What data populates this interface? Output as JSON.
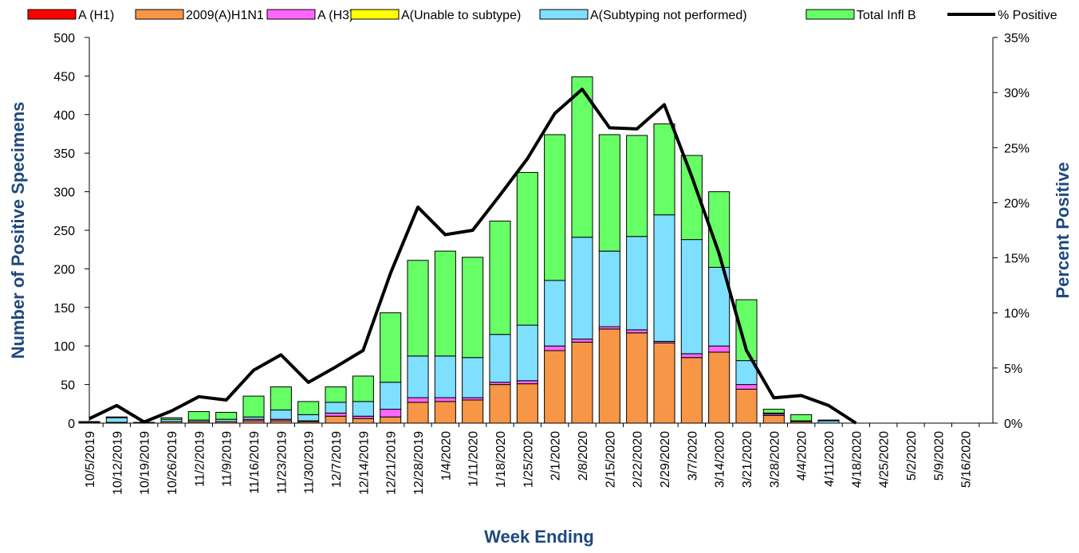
{
  "chart_data": {
    "type": "bar",
    "xlabel": "Week Ending",
    "ylabel": "Number of  Positive Specimens",
    "y2label": "Percent Positive",
    "categories": [
      "10/5/2019",
      "10/12/2019",
      "10/19/2019",
      "10/26/2019",
      "11/2/2019",
      "11/9/2019",
      "11/16/2019",
      "11/23/2019",
      "11/30/2019",
      "12/7/2019",
      "12/14/2019",
      "12/21/2019",
      "12/28/2019",
      "1/4/2020",
      "1/11/2020",
      "1/18/2020",
      "1/25/2020",
      "2/1/2020",
      "2/8/2020",
      "2/15/2020",
      "2/22/2020",
      "2/29/2020",
      "3/7/2020",
      "3/14/2020",
      "3/21/2020",
      "3/28/2020",
      "4/4/2020",
      "4/11/2020",
      "4/18/2020",
      "4/25/2020",
      "5/2/2020",
      "5/9/2020",
      "5/16/2020"
    ],
    "series": [
      {
        "name": "A (H1)",
        "color": "#ff0000",
        "values": [
          0,
          0,
          0,
          0,
          0,
          0,
          0,
          0,
          0,
          0,
          0,
          0,
          0,
          0,
          0,
          0,
          0,
          0,
          0,
          0,
          0,
          0,
          0,
          0,
          0,
          0,
          0,
          0,
          0,
          0,
          0,
          0,
          0
        ]
      },
      {
        "name": "2009(A)H1N1",
        "color": "#f79646",
        "values": [
          0,
          1,
          0,
          2,
          2,
          2,
          3,
          3,
          2,
          9,
          6,
          8,
          27,
          28,
          30,
          50,
          51,
          94,
          105,
          122,
          117,
          104,
          85,
          92,
          44,
          10,
          2,
          0,
          0,
          0,
          0,
          0,
          0
        ]
      },
      {
        "name": "A (H3)",
        "color": "#ff66ff",
        "values": [
          0,
          0,
          0,
          0,
          0,
          0,
          2,
          2,
          1,
          4,
          3,
          10,
          6,
          5,
          3,
          3,
          4,
          6,
          4,
          3,
          4,
          2,
          5,
          8,
          6,
          2,
          0,
          0,
          0,
          0,
          0,
          0,
          0
        ]
      },
      {
        "name": "A(Unable to subtype)",
        "color": "#ffff00",
        "values": [
          0,
          0,
          0,
          0,
          0,
          0,
          0,
          0,
          0,
          0,
          0,
          0,
          0,
          0,
          0,
          0,
          0,
          0,
          0,
          0,
          0,
          0,
          0,
          0,
          0,
          0,
          0,
          0,
          0,
          0,
          0,
          0,
          0
        ]
      },
      {
        "name": "A(Subtyping not performed)",
        "color": "#7fdfff",
        "values": [
          1,
          6,
          0,
          3,
          2,
          3,
          3,
          12,
          8,
          14,
          19,
          35,
          54,
          54,
          52,
          62,
          72,
          85,
          132,
          98,
          121,
          164,
          148,
          102,
          31,
          1,
          1,
          3,
          0,
          0,
          0,
          0,
          0
        ]
      },
      {
        "name": "Total Infl B",
        "color": "#66ff66",
        "values": [
          1,
          1,
          1,
          2,
          11,
          9,
          27,
          30,
          17,
          20,
          33,
          90,
          124,
          136,
          130,
          147,
          198,
          189,
          208,
          151,
          131,
          118,
          109,
          98,
          79,
          5,
          8,
          1,
          0,
          0,
          0,
          0,
          0
        ]
      },
      {
        "name": "% Positive",
        "type": "line",
        "axis": "y2",
        "color": "#000000",
        "values": [
          0.4,
          1.6,
          0.1,
          1.1,
          2.4,
          2.1,
          4.8,
          6.2,
          3.7,
          5.1,
          6.6,
          13.6,
          19.6,
          17.1,
          17.5,
          20.7,
          24.0,
          28.1,
          30.3,
          26.8,
          26.7,
          28.9,
          22.4,
          15.4,
          6.6,
          2.3,
          2.5,
          1.6,
          0,
          null,
          null,
          null,
          null
        ]
      }
    ],
    "ylim": [
      0,
      500
    ],
    "yticks": [
      0,
      50,
      100,
      150,
      200,
      250,
      300,
      350,
      400,
      450,
      500
    ],
    "y2lim": [
      0,
      35
    ],
    "y2ticks": [
      {
        "value": 0,
        "label": "0%"
      },
      {
        "value": 5,
        "label": "5%"
      },
      {
        "value": 10,
        "label": "10%"
      },
      {
        "value": 15,
        "label": "15%"
      },
      {
        "value": 20,
        "label": "20%"
      },
      {
        "value": 25,
        "label": "25%"
      },
      {
        "value": 30,
        "label": "30%"
      },
      {
        "value": 35,
        "label": "35%"
      }
    ],
    "stacked": true
  }
}
